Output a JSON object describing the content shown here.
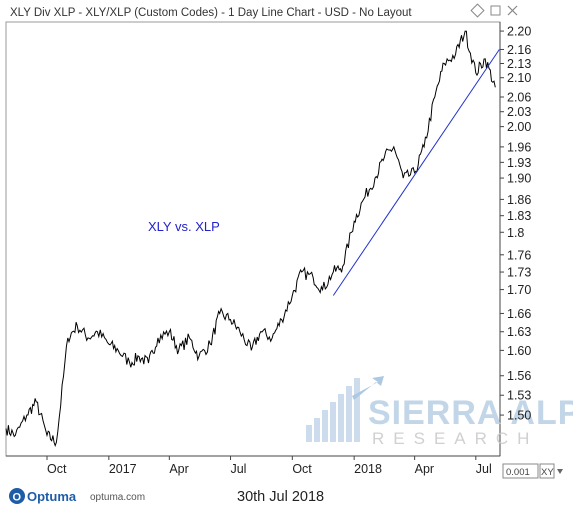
{
  "header": {
    "title": "XLY Div XLP - XLY/XLP (Custom Codes) - 1 Day Line Chart - USD - No Layout"
  },
  "annotation": "XLY vs. XLP",
  "watermark": {
    "main": "SIERRA ALPHA",
    "sub": "RESEARCH"
  },
  "brand": {
    "logo_text": "Optuma",
    "url": "optuma.com"
  },
  "footer": {
    "date": "30th Jul 2018"
  },
  "axis_widget": {
    "value": "0.001",
    "button": "XY"
  },
  "colors": {
    "line": "#000000",
    "trendline": "#2233cc",
    "accent": "#1f5ca8"
  },
  "icons": [
    "diamond-icon",
    "square-icon",
    "close-icon"
  ],
  "chart_data": {
    "type": "line",
    "series": [
      {
        "x": [
          "2016-08-01",
          "2016-08-15",
          "2016-09-01",
          "2016-09-15",
          "2016-10-01",
          "2016-10-15",
          "2016-11-01",
          "2016-11-15",
          "2016-12-01",
          "2016-12-15",
          "2017-01-01",
          "2017-01-15",
          "2017-02-01",
          "2017-02-15",
          "2017-03-01",
          "2017-03-15",
          "2017-04-01",
          "2017-04-15",
          "2017-05-01",
          "2017-05-15",
          "2017-06-01",
          "2017-06-15",
          "2017-07-01",
          "2017-07-15",
          "2017-08-01",
          "2017-08-15",
          "2017-09-01",
          "2017-09-15",
          "2017-10-01",
          "2017-10-15",
          "2017-11-01",
          "2017-11-15",
          "2017-12-01",
          "2017-12-15",
          "2018-01-01",
          "2018-01-15",
          "2018-02-01",
          "2018-02-15",
          "2018-03-01",
          "2018-03-15",
          "2018-04-01",
          "2018-04-15",
          "2018-05-01",
          "2018-05-15",
          "2018-06-01",
          "2018-06-15",
          "2018-07-01",
          "2018-07-15",
          "2018-07-30"
        ],
        "values": [
          1.48,
          1.47,
          1.5,
          1.52,
          1.47,
          1.46,
          1.62,
          1.64,
          1.62,
          1.63,
          1.61,
          1.6,
          1.58,
          1.59,
          1.58,
          1.62,
          1.63,
          1.6,
          1.62,
          1.59,
          1.61,
          1.66,
          1.65,
          1.63,
          1.6,
          1.63,
          1.62,
          1.65,
          1.69,
          1.73,
          1.72,
          1.7,
          1.73,
          1.74,
          1.82,
          1.86,
          1.9,
          1.94,
          1.96,
          1.9,
          1.91,
          1.96,
          2.06,
          2.13,
          2.15,
          2.2,
          2.11,
          2.14,
          2.08
        ]
      }
    ],
    "trendline": {
      "x": [
        "2017-12-01",
        "2018-08-05"
      ],
      "values": [
        1.69,
        2.16
      ]
    },
    "ylim": [
      1.44,
      2.22
    ],
    "yticks": [
      1.5,
      1.53,
      1.56,
      1.6,
      1.63,
      1.66,
      1.7,
      1.73,
      1.76,
      1.8,
      1.83,
      1.86,
      1.9,
      1.93,
      1.96,
      2.0,
      2.03,
      2.06,
      2.1,
      2.13,
      2.16,
      2.2
    ],
    "ytick_labels": [
      "1.50",
      "1.53",
      "1.56",
      "1.60",
      "1.63",
      "1.66",
      "1.70",
      "1.73",
      "1.76",
      "1.8",
      "1.83",
      "1.86",
      "1.90",
      "1.93",
      "1.96",
      "2.00",
      "2.03",
      "2.06",
      "2.10",
      "2.13",
      "2.16",
      "2.20"
    ],
    "xticks": [
      "Oct",
      "2017",
      "Apr",
      "Jul",
      "Oct",
      "2018",
      "Apr",
      "Jul"
    ],
    "y_scale": "log",
    "grid": false
  }
}
